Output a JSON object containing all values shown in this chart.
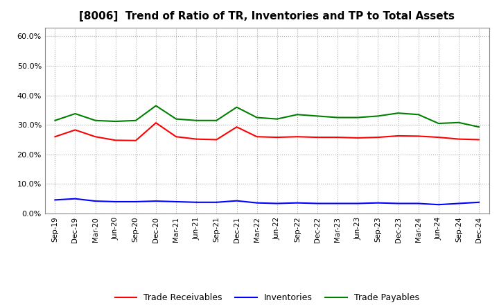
{
  "title": "[8006]  Trend of Ratio of TR, Inventories and TP to Total Assets",
  "x_labels": [
    "Sep-19",
    "Dec-19",
    "Mar-20",
    "Jun-20",
    "Sep-20",
    "Dec-20",
    "Mar-21",
    "Jun-21",
    "Sep-21",
    "Dec-21",
    "Mar-22",
    "Jun-22",
    "Sep-22",
    "Dec-22",
    "Mar-23",
    "Jun-23",
    "Sep-23",
    "Dec-23",
    "Mar-24",
    "Jun-24",
    "Sep-24",
    "Dec-24"
  ],
  "trade_receivables": [
    0.26,
    0.283,
    0.26,
    0.248,
    0.247,
    0.307,
    0.26,
    0.252,
    0.25,
    0.293,
    0.26,
    0.258,
    0.26,
    0.258,
    0.258,
    0.256,
    0.258,
    0.263,
    0.262,
    0.258,
    0.252,
    0.25
  ],
  "inventories": [
    0.046,
    0.05,
    0.042,
    0.04,
    0.04,
    0.042,
    0.04,
    0.038,
    0.038,
    0.043,
    0.036,
    0.034,
    0.036,
    0.034,
    0.034,
    0.034,
    0.036,
    0.034,
    0.034,
    0.03,
    0.034,
    0.038
  ],
  "trade_payables": [
    0.315,
    0.338,
    0.315,
    0.312,
    0.315,
    0.365,
    0.32,
    0.315,
    0.315,
    0.36,
    0.325,
    0.32,
    0.335,
    0.33,
    0.325,
    0.325,
    0.33,
    0.34,
    0.335,
    0.305,
    0.308,
    0.293
  ],
  "tr_color": "#ff0000",
  "inv_color": "#0000ff",
  "tp_color": "#008000",
  "ylim": [
    0.0,
    0.63
  ],
  "yticks": [
    0.0,
    0.1,
    0.2,
    0.3,
    0.4,
    0.5,
    0.6
  ],
  "background_color": "#ffffff",
  "grid_color": "#aaaaaa"
}
